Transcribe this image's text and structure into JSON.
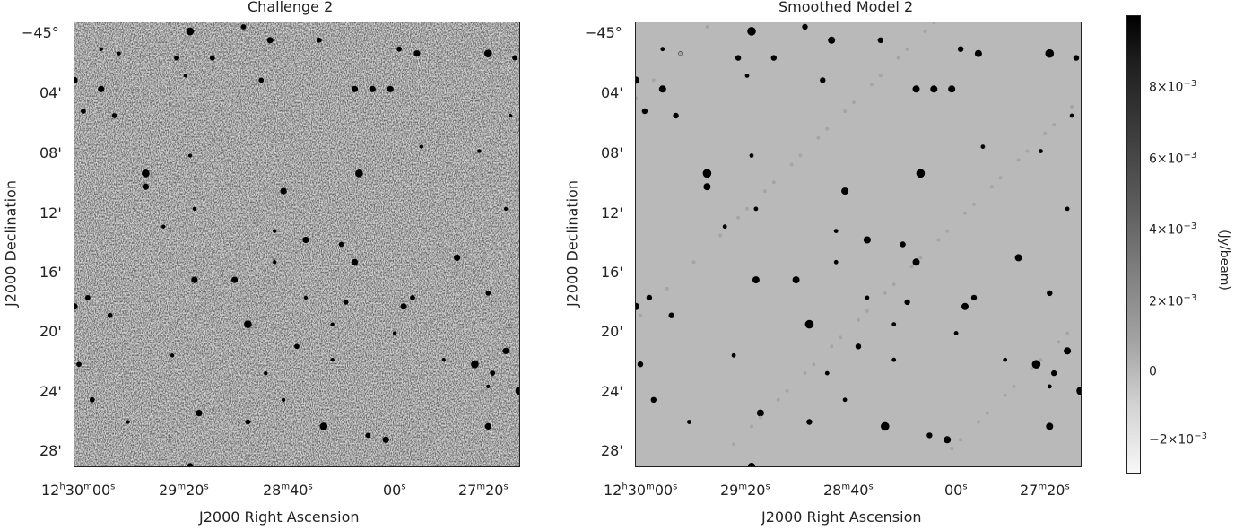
{
  "chart_data": [
    {
      "type": "image",
      "title": "Challenge 2",
      "xlabel": "J2000 Right Ascension",
      "ylabel": "J2000 Declination",
      "x_ticks": [
        {
          "main": "12",
          "u1": "h",
          "mid": "30",
          "u2": "m",
          "end": "00",
          "u3": "s"
        },
        {
          "main": "",
          "u1": "",
          "mid": "29",
          "u2": "m",
          "end": "20",
          "u3": "s"
        },
        {
          "main": "",
          "u1": "",
          "mid": "",
          "u2": "",
          "end": "28",
          "u3": "m",
          "tail": "40",
          "u4": "s"
        },
        {
          "main": "",
          "u1": "",
          "mid": "",
          "u2": "",
          "end": "00",
          "u3": "s"
        },
        {
          "main": "",
          "u1": "",
          "mid": "27",
          "u2": "m",
          "end": "20",
          "u3": "s"
        }
      ],
      "y_ticks": [
        "−45°",
        "04'",
        "08'",
        "12'",
        "16'",
        "20'",
        "24'",
        "28'"
      ],
      "background": "noise"
    },
    {
      "type": "image",
      "title": "Smoothed Model 2",
      "xlabel": "J2000 Right Ascension",
      "ylabel": "J2000 Declination",
      "y_ticks": [
        "−45°",
        "04'",
        "08'",
        "12'",
        "16'",
        "20'",
        "24'",
        "28'"
      ],
      "background": "flat"
    }
  ],
  "colorbar": {
    "unit": "(Jy/beam)",
    "labels": [
      {
        "base": "8×10",
        "exp": "−3"
      },
      {
        "base": "6×10",
        "exp": "−3"
      },
      {
        "base": "4×10",
        "exp": "−3"
      },
      {
        "base": "2×10",
        "exp": "−3"
      },
      {
        "base": "0",
        "exp": ""
      },
      {
        "base": "−2×10",
        "exp": "−3"
      }
    ],
    "colors": {
      "max": "#000000",
      "min": "#f7f7f7"
    }
  },
  "tick_text": {
    "l1": "12",
    "l1a": "h",
    "l1b": "30",
    "l1c": "m",
    "l1d": "00",
    "l1e": "s",
    "l2": "29",
    "l2a": "m",
    "l2b": "20",
    "l2c": "s",
    "l3": "28",
    "l3a": "m",
    "l3b": "40",
    "l3c": "s",
    "l4": "00",
    "l4a": "s",
    "l5": "27",
    "l5a": "m",
    "l5b": "20",
    "l5c": "s"
  },
  "sources": [
    [
      0.26,
      0.02,
      6
    ],
    [
      0.38,
      0.01,
      4
    ],
    [
      0.44,
      0.04,
      5
    ],
    [
      0.55,
      0.04,
      4
    ],
    [
      0.73,
      0.06,
      4
    ],
    [
      0.77,
      0.07,
      5
    ],
    [
      0.93,
      0.07,
      6
    ],
    [
      0.99,
      0.08,
      4
    ],
    [
      0.06,
      0.06,
      3
    ],
    [
      0.1,
      0.07,
      3
    ],
    [
      0.23,
      0.08,
      4
    ],
    [
      0.31,
      0.08,
      4
    ],
    [
      0.0,
      0.13,
      5
    ],
    [
      0.06,
      0.15,
      5
    ],
    [
      0.25,
      0.12,
      3
    ],
    [
      0.42,
      0.13,
      4
    ],
    [
      0.63,
      0.15,
      5
    ],
    [
      0.67,
      0.15,
      5
    ],
    [
      0.71,
      0.15,
      5
    ],
    [
      0.98,
      0.21,
      3
    ],
    [
      0.02,
      0.2,
      4
    ],
    [
      0.09,
      0.21,
      4
    ],
    [
      0.16,
      0.34,
      6
    ],
    [
      0.16,
      0.37,
      5
    ],
    [
      0.26,
      0.3,
      3
    ],
    [
      0.47,
      0.38,
      5
    ],
    [
      0.64,
      0.34,
      6
    ],
    [
      0.78,
      0.28,
      3
    ],
    [
      0.91,
      0.29,
      3
    ],
    [
      0.2,
      0.46,
      3
    ],
    [
      0.27,
      0.42,
      3
    ],
    [
      0.45,
      0.47,
      3
    ],
    [
      0.52,
      0.49,
      5
    ],
    [
      0.6,
      0.5,
      4
    ],
    [
      0.63,
      0.54,
      5
    ],
    [
      0.86,
      0.53,
      5
    ],
    [
      0.97,
      0.42,
      3
    ],
    [
      0.03,
      0.62,
      4
    ],
    [
      0.0,
      0.64,
      5
    ],
    [
      0.08,
      0.66,
      4
    ],
    [
      0.27,
      0.58,
      5
    ],
    [
      0.36,
      0.58,
      5
    ],
    [
      0.45,
      0.54,
      3
    ],
    [
      0.52,
      0.62,
      3
    ],
    [
      0.61,
      0.63,
      4
    ],
    [
      0.74,
      0.64,
      5
    ],
    [
      0.76,
      0.62,
      4
    ],
    [
      0.93,
      0.61,
      4
    ],
    [
      0.39,
      0.68,
      6
    ],
    [
      0.5,
      0.73,
      4
    ],
    [
      0.58,
      0.68,
      3
    ],
    [
      0.01,
      0.77,
      4
    ],
    [
      0.04,
      0.85,
      4
    ],
    [
      0.22,
      0.75,
      3
    ],
    [
      0.58,
      0.76,
      3
    ],
    [
      0.9,
      0.77,
      6
    ],
    [
      0.94,
      0.79,
      4
    ],
    [
      0.97,
      0.74,
      5
    ],
    [
      0.93,
      0.82,
      3
    ],
    [
      1.0,
      0.83,
      6
    ],
    [
      0.28,
      0.88,
      5
    ],
    [
      0.39,
      0.9,
      4
    ],
    [
      0.47,
      0.85,
      3
    ],
    [
      0.56,
      0.91,
      6
    ],
    [
      0.66,
      0.93,
      4
    ],
    [
      0.7,
      0.94,
      5
    ],
    [
      0.93,
      0.91,
      5
    ],
    [
      0.26,
      1.0,
      5
    ],
    [
      0.12,
      0.9,
      3
    ],
    [
      0.72,
      0.7,
      3
    ],
    [
      0.43,
      0.79,
      3
    ],
    [
      0.83,
      0.76,
      3
    ]
  ]
}
